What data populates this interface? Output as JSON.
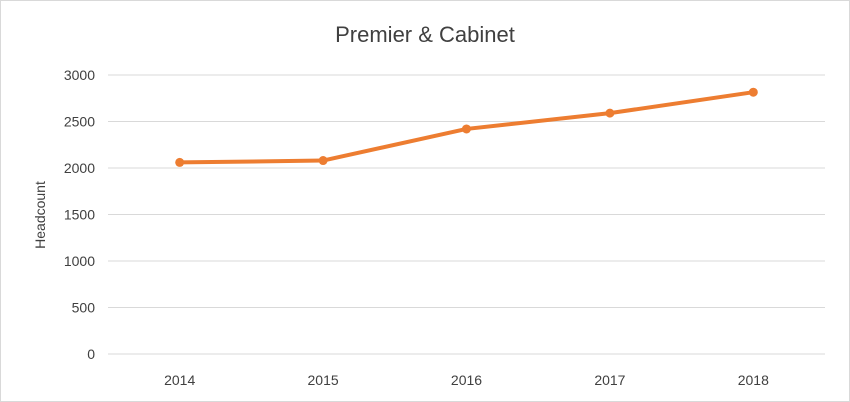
{
  "chart_data": {
    "type": "line",
    "title": "Premier & Cabinet",
    "xlabel": "",
    "ylabel": "Headcount",
    "categories": [
      "2014",
      "2015",
      "2016",
      "2017",
      "2018"
    ],
    "series": [
      {
        "values": [
          2060,
          2080,
          2420,
          2590,
          2815
        ],
        "color": "#ed7d31"
      }
    ],
    "ylim": [
      0,
      3000
    ],
    "yticks": [
      0,
      500,
      1000,
      1500,
      2000,
      2500,
      3000
    ],
    "grid": true,
    "legend": "none"
  }
}
